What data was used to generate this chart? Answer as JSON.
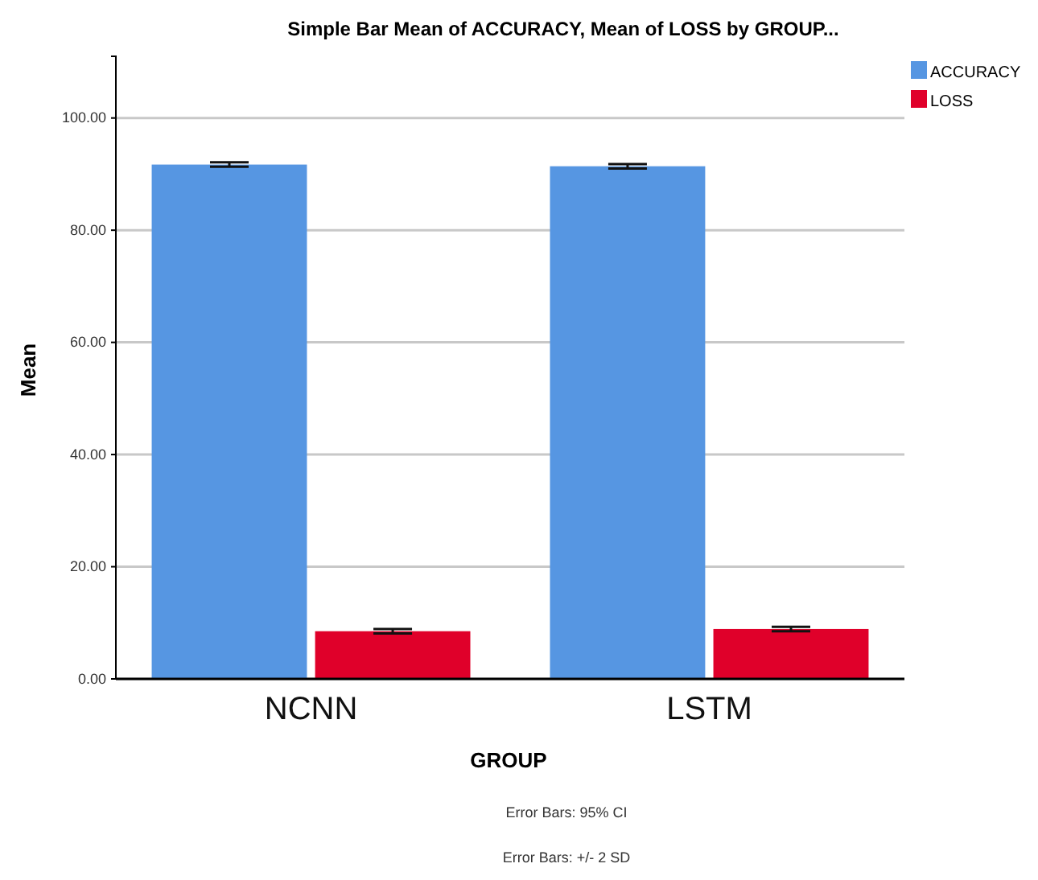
{
  "chart_data": {
    "type": "bar",
    "title": "Simple Bar Mean of ACCURACY, Mean of LOSS by GROUP...",
    "xlabel": "GROUP",
    "ylabel": "Mean",
    "categories": [
      "NCNN",
      "LSTM"
    ],
    "series": [
      {
        "name": "ACCURACY",
        "color": "#5696e2",
        "values": [
          91.7,
          91.4
        ],
        "errors": [
          0.4,
          0.4
        ]
      },
      {
        "name": "LOSS",
        "color": "#e0002a",
        "values": [
          8.5,
          8.9
        ],
        "errors": [
          0.4,
          0.4
        ]
      }
    ],
    "ylim": [
      0,
      111
    ],
    "yticks": [
      {
        "value": 0,
        "label": "0.00"
      },
      {
        "value": 20,
        "label": "20.00"
      },
      {
        "value": 40,
        "label": "40.00"
      },
      {
        "value": 60,
        "label": "60.00"
      },
      {
        "value": 80,
        "label": "80.00"
      },
      {
        "value": 100,
        "label": "100.00"
      }
    ],
    "grid": "y",
    "legend": "top right",
    "annotations": [
      "Error Bars: 95% CI",
      "Error Bars: +/- 2 SD"
    ]
  }
}
